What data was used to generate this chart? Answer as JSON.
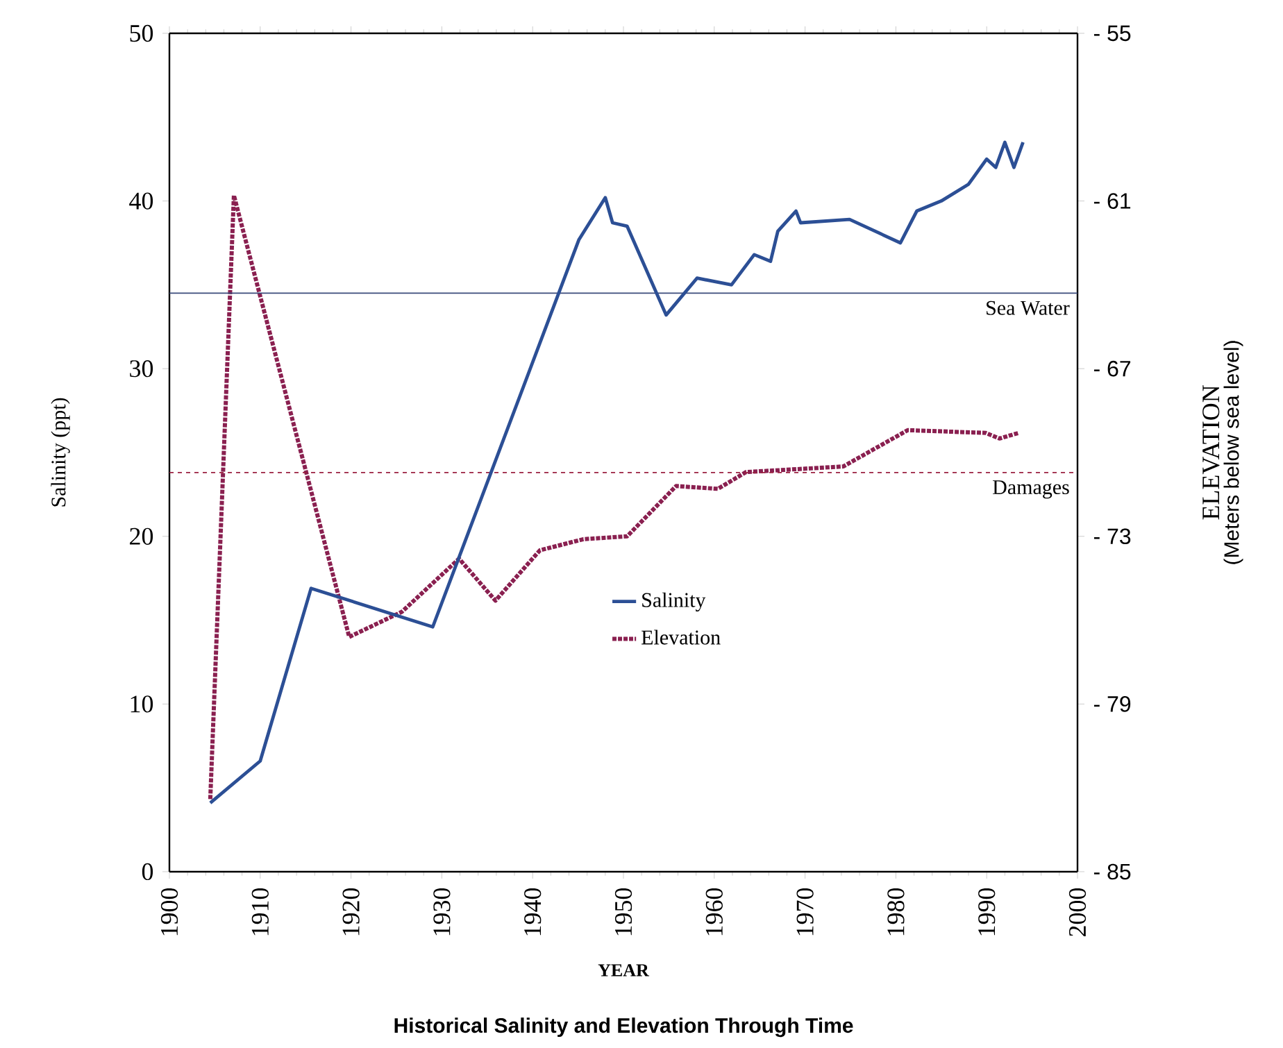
{
  "chart_data": {
    "type": "line",
    "title": "Historical Salinity and Elevation Through Time",
    "xlabel": "YEAR",
    "ylabel": "Salinity (ppt)",
    "y2label": "ELEVATION",
    "annotations": [
      "(Meters below sea level)"
    ],
    "xlim": [
      1900,
      2000
    ],
    "xticks": [
      1900,
      1910,
      1920,
      1930,
      1940,
      1950,
      1960,
      1970,
      1980,
      1990,
      2000
    ],
    "ylim": [
      0,
      50
    ],
    "yticks": [
      0,
      10,
      20,
      30,
      40,
      50
    ],
    "y2lim": [
      -85,
      -55
    ],
    "y2ticks": [
      {
        "value": -85,
        "label": "- 85"
      },
      {
        "value": -79,
        "label": "- 79"
      },
      {
        "value": -73,
        "label": "- 73"
      },
      {
        "value": -67,
        "label": "- 67"
      },
      {
        "value": -61,
        "label": "- 61"
      },
      {
        "value": -55,
        "label": "- 55"
      }
    ],
    "legend": "center",
    "grid": false,
    "marker": "none",
    "ref_lines": [
      {
        "axis": "y",
        "value": 34.5,
        "label": "Sea Water",
        "color": "#3a4a7a",
        "line_style": "solid"
      },
      {
        "axis": "y",
        "value": 23.8,
        "label": "Damages",
        "color": "#9a2040",
        "line_style": "dashed"
      }
    ],
    "series": [
      {
        "name": "Salinity",
        "color": "#2c4f95",
        "line_style": "solid",
        "x": [
          1904.5,
          1910.0,
          1915.6,
          1929.0,
          1945.1,
          1948.0,
          1948.8,
          1950.4,
          1954.7,
          1958.1,
          1961.9,
          1964.4,
          1966.2,
          1967.0,
          1969.0,
          1969.5,
          1974.9,
          1980.5,
          1982.3,
          1985.0,
          1988.0,
          1990.0,
          1991.0,
          1992.0,
          1993.0,
          1994.0
        ],
        "values": [
          4.1,
          6.6,
          16.9,
          14.6,
          37.7,
          40.2,
          38.7,
          38.5,
          33.2,
          35.4,
          35.0,
          36.8,
          36.4,
          38.2,
          39.4,
          38.7,
          38.9,
          37.5,
          39.4,
          40.0,
          41.0,
          42.5,
          42.0,
          43.5,
          42.0,
          43.5
        ]
      },
      {
        "name": "Elevation",
        "color": "#8a2050",
        "line_style": "dotted",
        "axis": "y2",
        "x": [
          1904.5,
          1907.1,
          1919.8,
          1925.6,
          1931.9,
          1935.9,
          1940.8,
          1945.6,
          1950.4,
          1955.8,
          1960.4,
          1963.5,
          1974.2,
          1981.3,
          1989.9,
          1991.4,
          1993.5
        ],
        "values": [
          -82.4,
          -60.8,
          -76.6,
          -75.7,
          -73.8,
          -75.3,
          -73.5,
          -73.1,
          -73.0,
          -71.2,
          -71.3,
          -70.7,
          -70.5,
          -69.2,
          -69.3,
          -69.5,
          -69.3
        ]
      }
    ]
  }
}
